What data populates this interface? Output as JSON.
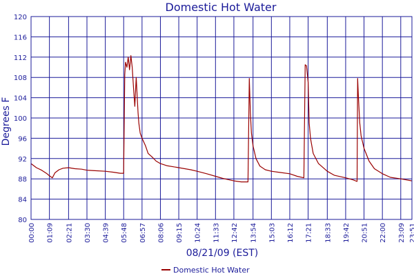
{
  "chart_data": {
    "type": "line",
    "title": "Domestic Hot Water",
    "xlabel": "08/21/09 (EST)",
    "ylabel": "Degrees F",
    "ylim": [
      80,
      120
    ],
    "yticks": [
      80,
      84,
      88,
      92,
      96,
      100,
      104,
      108,
      112,
      116,
      120
    ],
    "xlim": [
      "00:00",
      "23:51"
    ],
    "xticks": [
      "00:00",
      "01:09",
      "02:21",
      "03:30",
      "04:39",
      "05:48",
      "06:57",
      "08:06",
      "09:15",
      "10:24",
      "11:33",
      "12:42",
      "13:54",
      "15:03",
      "16:12",
      "17:21",
      "18:33",
      "19:42",
      "20:51",
      "22:00",
      "23:09",
      "23:51"
    ],
    "grid": true,
    "legend_position": "bottom",
    "colors": {
      "line": "#990000",
      "grid": "#1a1a99",
      "text": "#1a1a99"
    },
    "series": [
      {
        "name": "Domestic Hot Water",
        "x": [
          "00:00",
          "00:20",
          "00:40",
          "01:00",
          "01:09",
          "01:20",
          "01:30",
          "01:45",
          "02:00",
          "02:21",
          "02:45",
          "03:10",
          "03:30",
          "04:00",
          "04:39",
          "05:10",
          "05:35",
          "05:48",
          "05:52",
          "05:55",
          "06:00",
          "06:05",
          "06:10",
          "06:15",
          "06:20",
          "06:25",
          "06:30",
          "06:35",
          "06:40",
          "06:42",
          "06:45",
          "06:50",
          "06:57",
          "07:10",
          "07:20",
          "07:35",
          "07:50",
          "08:06",
          "08:30",
          "09:15",
          "10:00",
          "10:24",
          "11:00",
          "11:33",
          "12:00",
          "12:42",
          "13:10",
          "13:35",
          "13:40",
          "13:44",
          "13:48",
          "13:54",
          "14:05",
          "14:20",
          "14:40",
          "15:03",
          "15:30",
          "16:12",
          "16:40",
          "17:05",
          "17:10",
          "17:15",
          "17:21",
          "17:25",
          "17:30",
          "17:40",
          "18:00",
          "18:33",
          "19:00",
          "19:42",
          "20:10",
          "20:25",
          "20:27",
          "20:30",
          "20:35",
          "20:40",
          "20:51",
          "21:10",
          "21:30",
          "22:00",
          "22:30",
          "23:09",
          "23:51"
        ],
        "values": [
          91.0,
          90.2,
          89.7,
          89.0,
          88.6,
          88.2,
          89.2,
          89.8,
          90.1,
          90.2,
          90.0,
          89.9,
          89.7,
          89.6,
          89.5,
          89.3,
          89.1,
          89.1,
          108.5,
          111.0,
          110.0,
          112.0,
          109.5,
          112.3,
          110.0,
          106.0,
          102.3,
          108.0,
          103.0,
          101.0,
          99.0,
          97.0,
          96.0,
          94.5,
          93.0,
          92.3,
          91.5,
          91.0,
          90.6,
          90.2,
          89.8,
          89.5,
          89.0,
          88.5,
          88.1,
          87.6,
          87.4,
          87.4,
          107.8,
          101.0,
          97.0,
          94.5,
          92.0,
          90.5,
          89.8,
          89.5,
          89.3,
          89.0,
          88.5,
          88.2,
          110.5,
          110.3,
          107.0,
          99.0,
          96.0,
          93.0,
          91.0,
          89.5,
          88.7,
          88.2,
          87.8,
          87.5,
          107.8,
          104.0,
          99.0,
          96.5,
          94.0,
          91.5,
          90.0,
          89.0,
          88.3,
          88.0,
          87.6
        ]
      }
    ]
  }
}
